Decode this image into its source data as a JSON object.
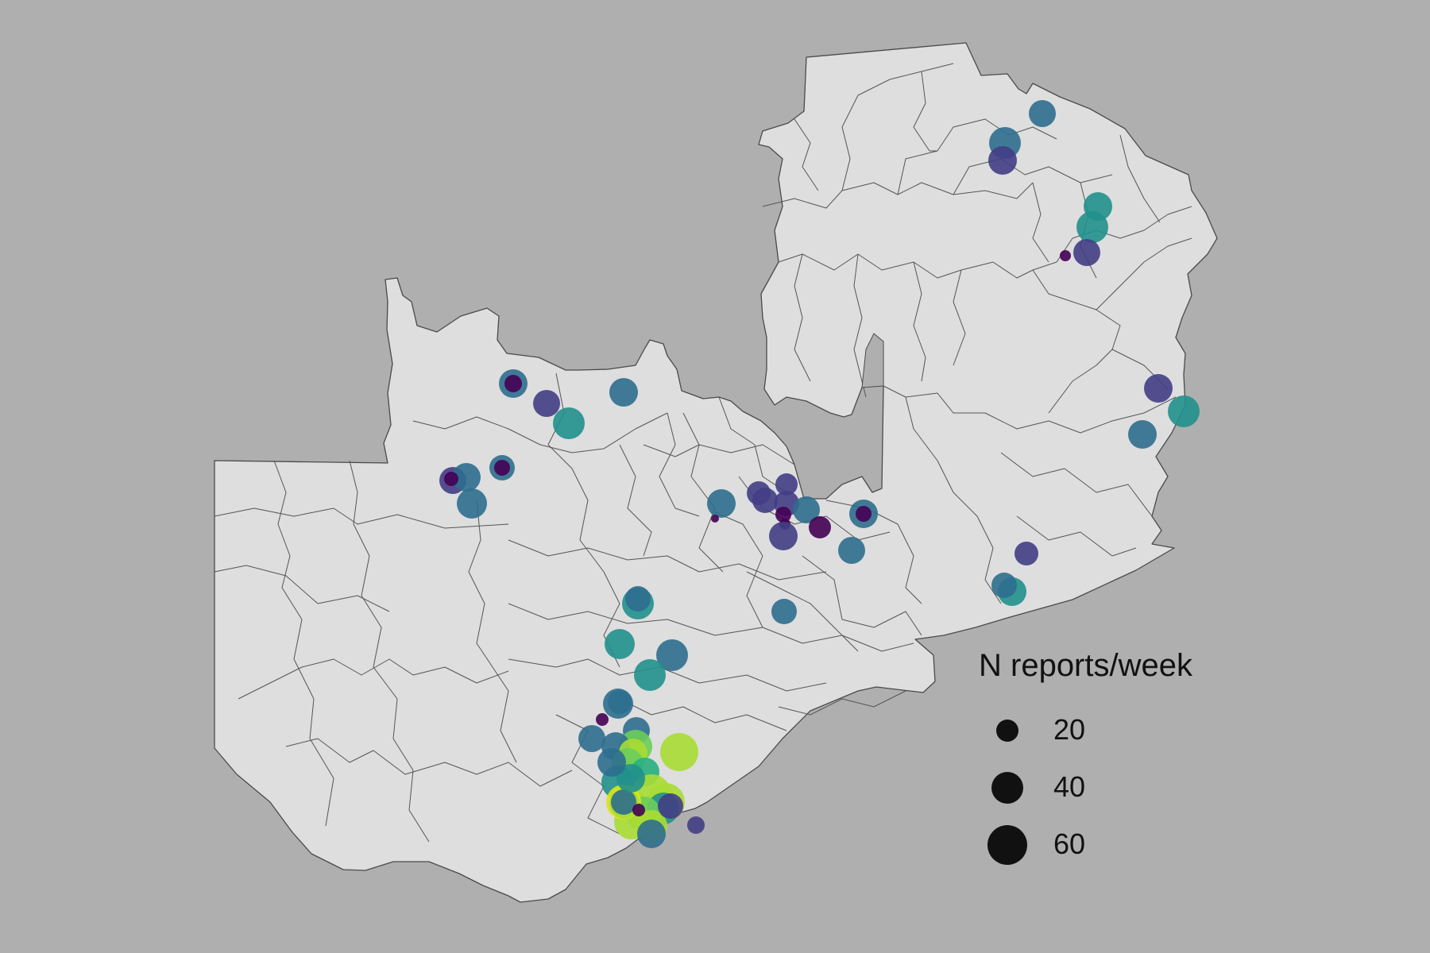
{
  "legend": {
    "title": "N reports/week",
    "items": [
      {
        "label": "20",
        "value": 20
      },
      {
        "label": "40",
        "value": 40
      },
      {
        "label": "60",
        "value": 60
      }
    ]
  },
  "colors": {
    "background": "#afafaf",
    "land_fill": "#dedede",
    "boundary_stroke": "#4a4a4a",
    "legend_marker": "#111111",
    "palette": [
      "#440154",
      "#433e85",
      "#2d6e8e",
      "#21908c",
      "#28ae80",
      "#6ccd5a",
      "#a8db34",
      "#dde318"
    ]
  }
}
